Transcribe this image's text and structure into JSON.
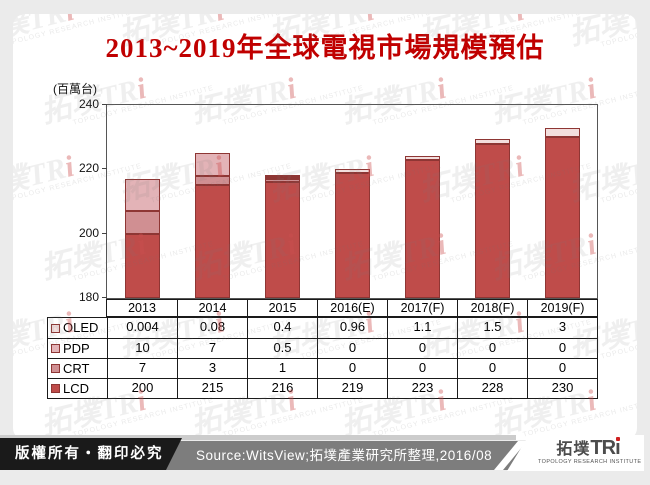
{
  "title": "2013~2019年全球電視市場規模預估",
  "unit_label": "(百萬台)",
  "chart_data": {
    "type": "bar",
    "subtype": "stacked",
    "categories": [
      "2013",
      "2014",
      "2015",
      "2016(E)",
      "2017(F)",
      "2018(F)",
      "2019(F)"
    ],
    "series": [
      {
        "name": "OLED",
        "values": [
          0.004,
          0.08,
          0.4,
          0.96,
          1.1,
          1.5,
          3
        ],
        "color": "#f3dedd"
      },
      {
        "name": "PDP",
        "values": [
          10,
          7,
          0.5,
          0,
          0,
          0,
          0
        ],
        "color": "#e3b3b7"
      },
      {
        "name": "CRT",
        "values": [
          7,
          3,
          1,
          0,
          0,
          0,
          0
        ],
        "color": "#d08f92"
      },
      {
        "name": "LCD",
        "values": [
          200,
          215,
          216,
          219,
          223,
          228,
          230
        ],
        "color": "#bf4c4a"
      }
    ],
    "title": "2013~2019年全球電視市場規模預估",
    "xlabel": "",
    "ylabel": "(百萬台)",
    "ylim": [
      180,
      240
    ],
    "yticks": [
      240,
      220,
      200,
      180
    ],
    "grid": false,
    "legend_position": "table-left",
    "segment_border_color": "#8e3634",
    "title_color": "#c00000"
  },
  "footer": {
    "copyright": "版權所有‧翻印必究",
    "source": "Source:WitsView;拓墣產業研究所整理,2016/08",
    "logo": {
      "cjk": "拓墣",
      "latin": "TR",
      "i_char": "ı",
      "subtitle": "TOPOLOGY RESEARCH INSTITUTE"
    }
  },
  "watermark": {
    "brand_prefix": "拓墣TR",
    "brand_i": "i",
    "subtitle": "TOPOLOGY RESEARCH INSTITUTE"
  }
}
